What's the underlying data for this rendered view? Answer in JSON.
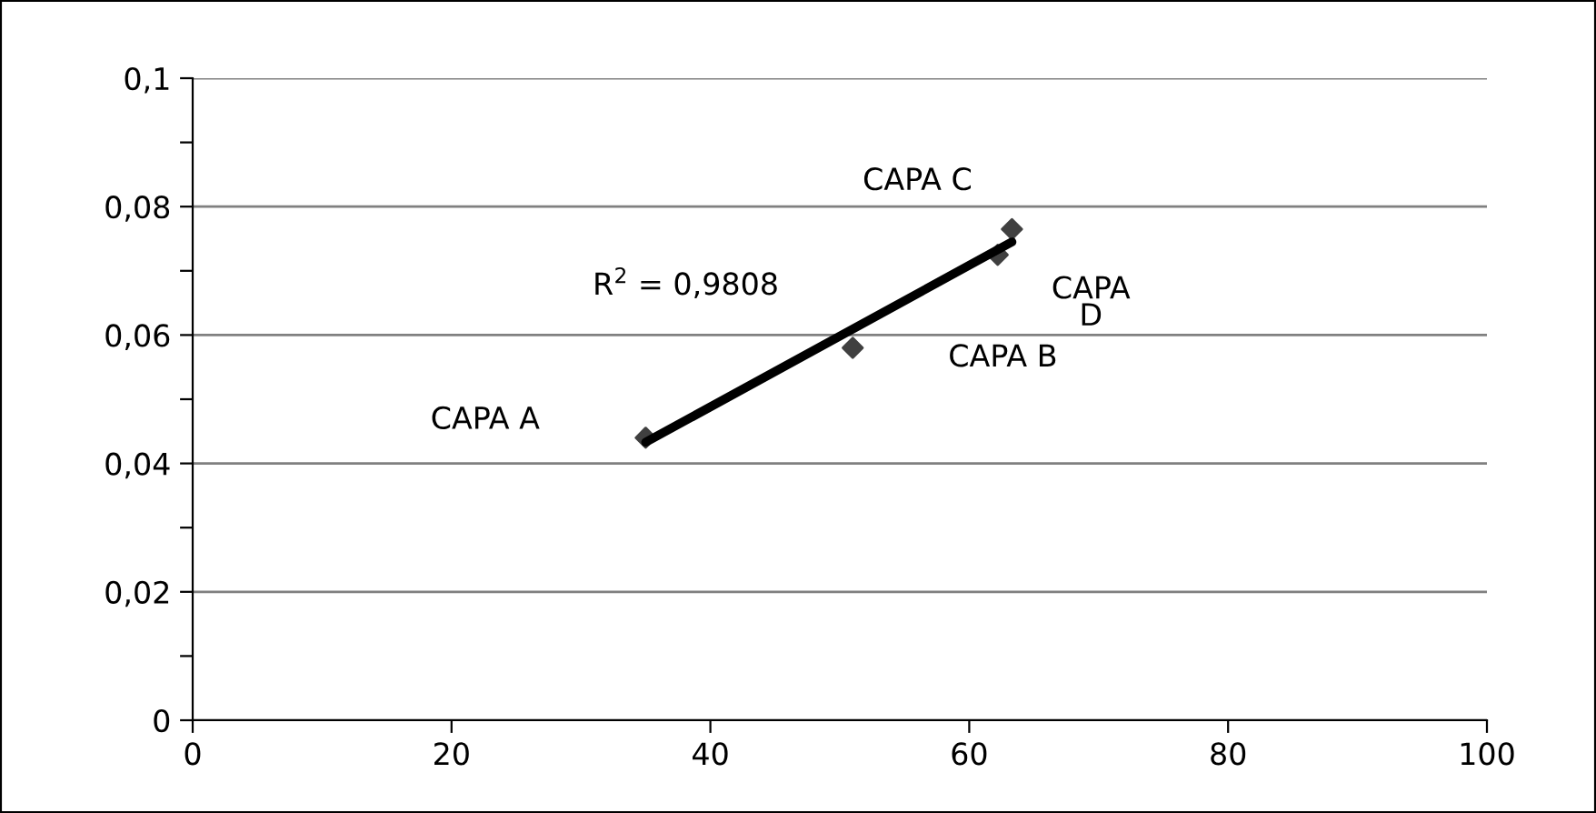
{
  "chart_data": {
    "type": "scatter",
    "grid": "y",
    "xlim": [
      0,
      100
    ],
    "xticks": [
      0,
      20,
      40,
      60,
      80,
      100
    ],
    "ylim": [
      0,
      0.1
    ],
    "yticks": [
      {
        "value": 0,
        "label": "0"
      },
      {
        "value": 0.01,
        "label": null
      },
      {
        "value": 0.02,
        "label": "0,02"
      },
      {
        "value": 0.03,
        "label": null
      },
      {
        "value": 0.04,
        "label": "0,04"
      },
      {
        "value": 0.05,
        "label": null
      },
      {
        "value": 0.06,
        "label": "0,06"
      },
      {
        "value": 0.07,
        "label": null
      },
      {
        "value": 0.08,
        "label": "0,08"
      },
      {
        "value": 0.09,
        "label": null
      },
      {
        "value": 0.1,
        "label": "0,1"
      }
    ],
    "series": [
      {
        "marker": "diamond",
        "color": "#404040",
        "x": [
          35,
          51,
          62.2,
          63.3
        ],
        "values": [
          0.044,
          0.058,
          0.0725,
          0.0765
        ]
      },
      {
        "type": "line",
        "marker": "none",
        "color": "#000000",
        "x": [
          35,
          63.3
        ],
        "values": [
          0.0433,
          0.0745
        ]
      }
    ],
    "annotations": [
      "CAPA A",
      "CAPA B",
      "CAPA\nD",
      "CAPA C",
      "R$^{2}$ = 0,9808"
    ]
  }
}
